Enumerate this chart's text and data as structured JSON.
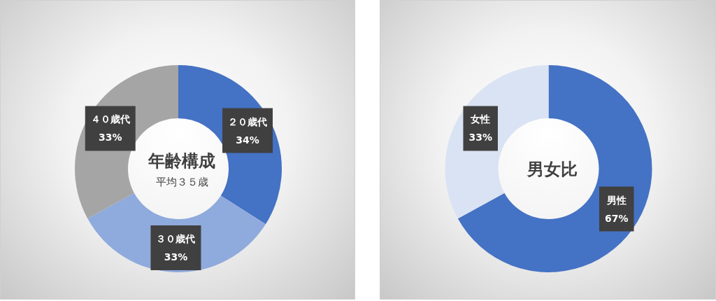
{
  "chart_data": [
    {
      "type": "donut",
      "title": "年齢構成",
      "subtitle": "平均３５歳",
      "categories": [
        "２０歳代",
        "３０歳代",
        "４０歳代"
      ],
      "values": [
        34,
        33,
        33
      ],
      "colors": [
        "#4472c4",
        "#8faadc",
        "#a5a5a5"
      ],
      "value_labels": [
        "34%",
        "33%",
        "33%"
      ],
      "legend": false
    },
    {
      "type": "donut",
      "title": "男女比",
      "categories": [
        "男性",
        "女性"
      ],
      "values": [
        67,
        33
      ],
      "colors": [
        "#4472c4",
        "#dae3f3"
      ],
      "value_labels": [
        "67%",
        "33%"
      ],
      "legend": false
    }
  ]
}
